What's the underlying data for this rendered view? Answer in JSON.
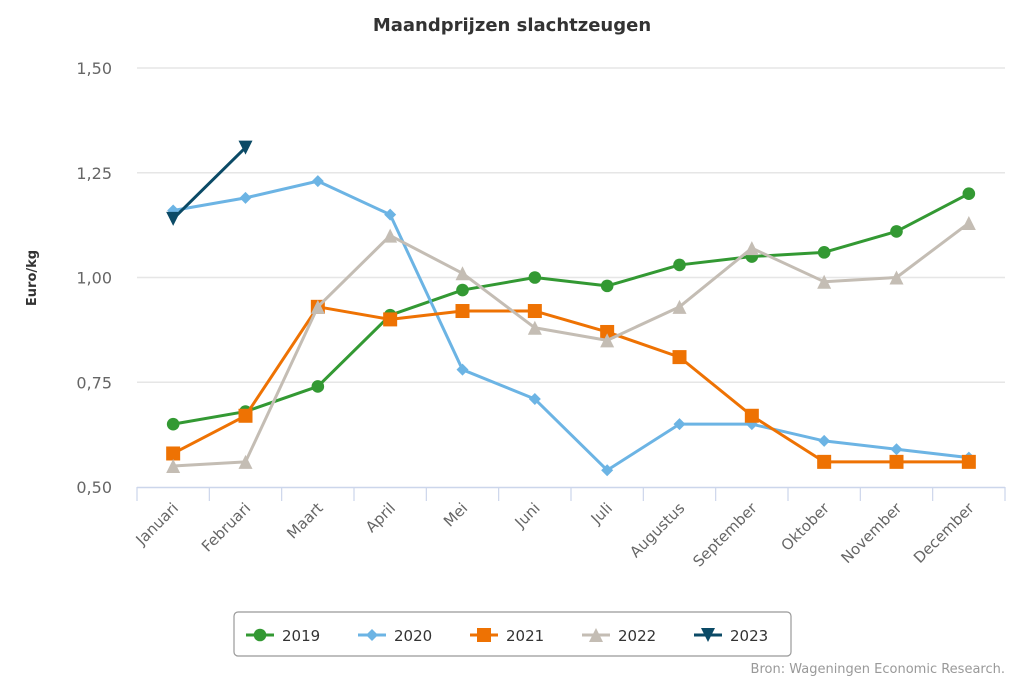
{
  "chart_data": {
    "type": "line",
    "title": "Maandprijzen slachtzeugen",
    "xlabel": "",
    "ylabel": "Euro/kg",
    "ylim": [
      0.5,
      1.5
    ],
    "yticks": [
      0.5,
      0.75,
      1.0,
      1.25,
      1.5
    ],
    "ytick_labels": [
      "0,50",
      "0,75",
      "1,00",
      "1,25",
      "1,50"
    ],
    "categories": [
      "Januari",
      "Februari",
      "Maart",
      "April",
      "Mei",
      "Juni",
      "Juli",
      "Augustus",
      "September",
      "Oktober",
      "November",
      "December"
    ],
    "grid": "horizontal",
    "legend_position": "bottom-center",
    "credit": "Bron: Wageningen Economic Research.",
    "series": [
      {
        "name": "2019",
        "color": "#339933",
        "marker": "circle",
        "values": [
          0.65,
          0.68,
          0.74,
          0.91,
          0.97,
          1.0,
          0.98,
          1.03,
          1.05,
          1.06,
          1.11,
          1.2
        ]
      },
      {
        "name": "2020",
        "color": "#6cb4e4",
        "marker": "diamond",
        "values": [
          1.16,
          1.19,
          1.23,
          1.15,
          0.78,
          0.71,
          0.54,
          0.65,
          0.65,
          0.61,
          0.59,
          0.57
        ]
      },
      {
        "name": "2021",
        "color": "#ee7203",
        "marker": "square",
        "values": [
          0.58,
          0.67,
          0.93,
          0.9,
          0.92,
          0.92,
          0.87,
          0.81,
          0.67,
          0.56,
          0.56,
          0.56
        ]
      },
      {
        "name": "2022",
        "color": "#c4bdb4",
        "marker": "triangle",
        "values": [
          0.55,
          0.56,
          0.93,
          1.1,
          1.01,
          0.88,
          0.85,
          0.93,
          1.07,
          0.99,
          1.0,
          1.13
        ]
      },
      {
        "name": "2023",
        "color": "#0b4a66",
        "marker": "triangle-down",
        "values": [
          1.14,
          1.31,
          null,
          null,
          null,
          null,
          null,
          null,
          null,
          null,
          null,
          null
        ]
      }
    ]
  }
}
